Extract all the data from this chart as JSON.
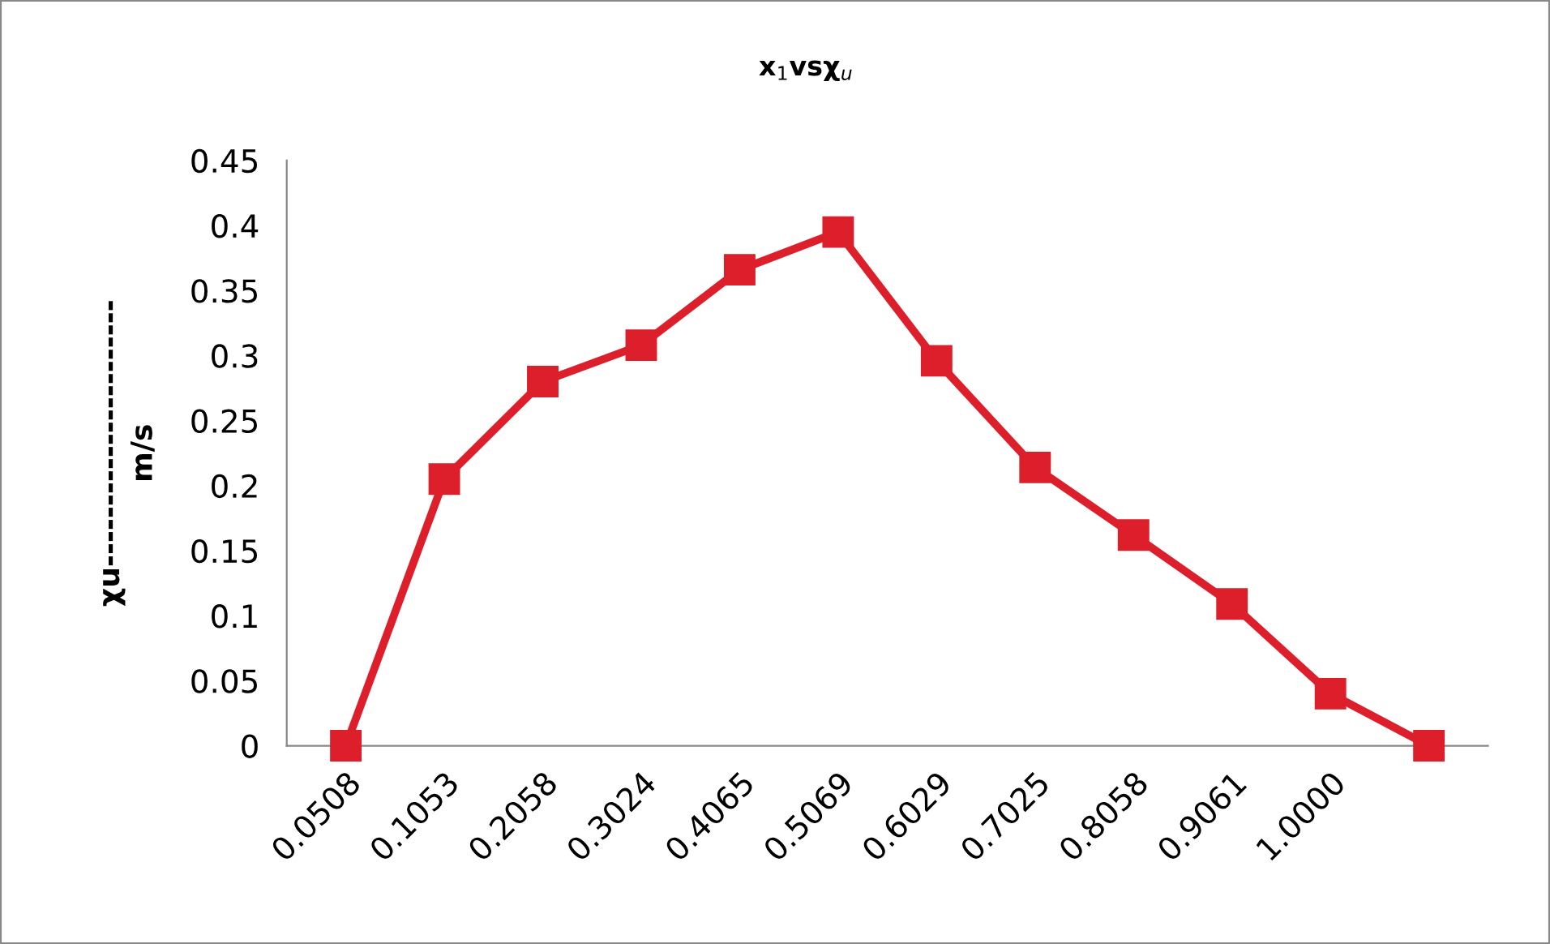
{
  "chart_data": {
    "type": "line",
    "title": "x$_{1}$vsχ$_{u}$",
    "ylabel": "χu----------------------\nm/s",
    "categories": [
      "0.0508",
      "0.1053",
      "0.2058",
      "0.3024",
      "0.4065",
      "0.5069",
      "0.6029",
      "0.7025",
      "0.8058",
      "0.9061",
      "1.0000",
      null
    ],
    "series": [
      {
        "color": "#dc1f2a",
        "values": [
          0,
          0.205,
          0.28,
          0.308,
          0.366,
          0.395,
          0.296,
          0.214,
          0.162,
          0.109,
          0.04,
          0
        ]
      }
    ],
    "ylim": [
      0,
      0.45
    ],
    "yticks": [
      0,
      0.05,
      0.1,
      0.15,
      0.2,
      0.25,
      0.3,
      0.35,
      0.4,
      0.45
    ],
    "grid": false,
    "legend": false,
    "marker": "square",
    "line_style": "solid"
  }
}
